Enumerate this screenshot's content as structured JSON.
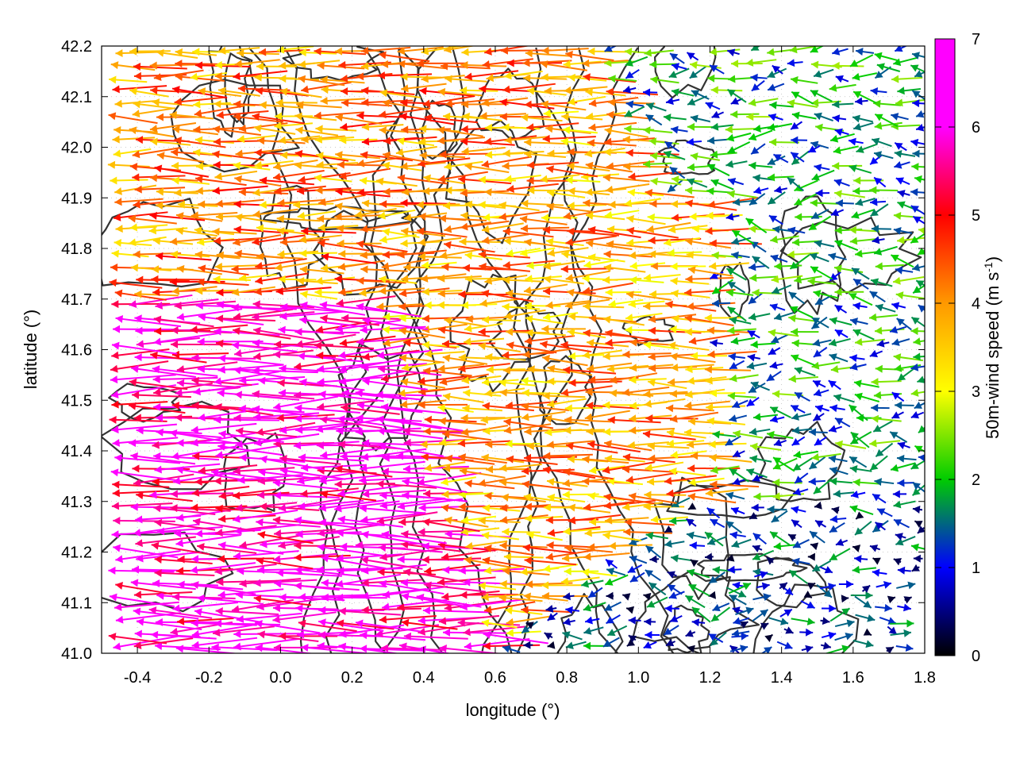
{
  "chart_data": {
    "type": "quiver",
    "title": "",
    "xlabel": "longitude (°)",
    "ylabel": "latitude (°)",
    "colorbar_label": "50m-wind speed (m s",
    "colorbar_label_sup": "-1",
    "colorbar_label_close": ")",
    "xlim": [
      -0.5,
      1.8
    ],
    "ylim": [
      41.0,
      42.2
    ],
    "xticks": [
      -0.4,
      -0.2,
      0.0,
      0.2,
      0.4,
      0.6,
      0.8,
      1.0,
      1.2,
      1.4,
      1.6,
      1.8
    ],
    "xtick_labels": [
      "-0.4",
      "-0.2",
      "0.0",
      "0.2",
      "0.4",
      "0.6",
      "0.8",
      "1.0",
      "1.2",
      "1.4",
      "1.6",
      "1.8"
    ],
    "yticks": [
      41.0,
      41.1,
      41.2,
      41.3,
      41.4,
      41.5,
      41.6,
      41.7,
      41.8,
      41.9,
      42.0,
      42.1,
      42.2
    ],
    "ytick_labels": [
      "41.0",
      "41.1",
      "41.2",
      "41.3",
      "41.4",
      "41.5",
      "41.6",
      "41.7",
      "41.8",
      "41.9",
      "42.0",
      "42.1",
      "42.2"
    ],
    "colorbar": {
      "range": [
        0,
        7
      ],
      "ticks": [
        0,
        1,
        2,
        3,
        4,
        5,
        6,
        7
      ],
      "tick_labels": [
        "0",
        "1",
        "2",
        "3",
        "4",
        "5",
        "6",
        "7"
      ],
      "colors": [
        "#000000",
        "#0000ff",
        "#00cc00",
        "#ffff00",
        "#ff9900",
        "#ff0000",
        "#ff00ff"
      ]
    },
    "grid": true,
    "vector_field_regions": [
      {
        "region": "west",
        "lon": [
          -0.5,
          0.2
        ],
        "lat": [
          41.1,
          41.7
        ],
        "speed": 7.0,
        "direction": "easterly (arrows point west)"
      },
      {
        "region": "north-west",
        "lon": [
          -0.5,
          0.3
        ],
        "lat": [
          41.8,
          42.2
        ],
        "speed": 4.8,
        "direction": "easterly"
      },
      {
        "region": "central",
        "lon": [
          0.4,
          1.2
        ],
        "lat": [
          41.3,
          41.9
        ],
        "speed": 4.5,
        "direction": "easterly"
      },
      {
        "region": "east",
        "lon": [
          1.2,
          1.8
        ],
        "lat": [
          41.3,
          42.2
        ],
        "speed": 2.0,
        "direction": "mostly easterly, variable"
      },
      {
        "region": "south-east",
        "lon": [
          1.3,
          1.8
        ],
        "lat": [
          41.0,
          41.15
        ],
        "speed": 1.2,
        "direction": "westerly (arrows point east)"
      }
    ],
    "contour_color": "#333333"
  }
}
